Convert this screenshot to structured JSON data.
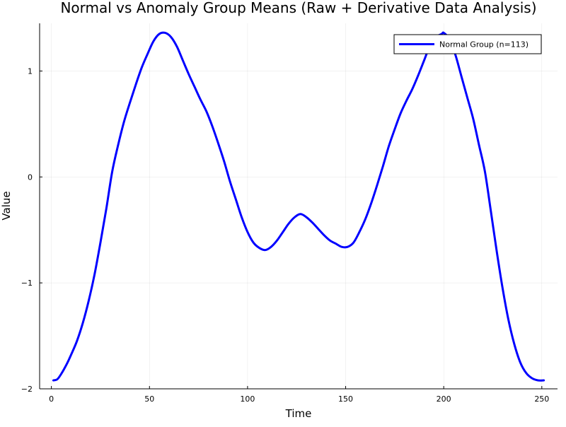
{
  "chart_data": {
    "type": "line",
    "title": "Normal vs Anomaly Group Means (Raw + Derivative Data Analysis)",
    "xlabel": "Time",
    "ylabel": "Value",
    "xlim": [
      -6,
      258
    ],
    "ylim": [
      -2.0,
      1.45
    ],
    "x_ticks": [
      0,
      50,
      100,
      150,
      200,
      250
    ],
    "y_ticks": [
      -2,
      -1,
      0,
      1
    ],
    "x_tick_labels": [
      "0",
      "50",
      "100",
      "150",
      "200",
      "250"
    ],
    "y_tick_labels": [
      "−2",
      "−1",
      "0",
      "1"
    ],
    "grid": true,
    "legend_position": "top-right",
    "series": [
      {
        "name": "Normal Group (n=113)",
        "color": "#0000ff",
        "x": [
          1,
          3,
          5,
          8,
          10,
          13,
          16,
          19,
          22,
          25,
          28,
          31,
          34,
          37,
          40,
          43,
          46,
          49,
          52,
          55,
          58,
          61,
          64,
          67,
          70,
          73,
          76,
          79,
          82,
          85,
          88,
          91,
          94,
          97,
          100,
          103,
          106,
          109,
          112,
          115,
          118,
          121,
          124,
          127,
          130,
          133,
          136,
          139,
          142,
          145,
          148,
          151,
          154,
          157,
          160,
          163,
          166,
          169,
          172,
          175,
          178,
          181,
          184,
          187,
          190,
          193,
          196,
          199,
          200,
          203,
          206,
          209,
          212,
          215,
          218,
          221,
          224,
          227,
          230,
          233,
          236,
          239,
          242,
          245,
          248,
          251
        ],
        "values": [
          -1.92,
          -1.91,
          -1.86,
          -1.76,
          -1.68,
          -1.55,
          -1.38,
          -1.17,
          -0.92,
          -0.62,
          -0.3,
          0.05,
          0.3,
          0.52,
          0.7,
          0.87,
          1.03,
          1.16,
          1.28,
          1.35,
          1.36,
          1.32,
          1.23,
          1.1,
          0.97,
          0.85,
          0.73,
          0.62,
          0.48,
          0.32,
          0.15,
          -0.04,
          -0.21,
          -0.38,
          -0.52,
          -0.62,
          -0.67,
          -0.69,
          -0.66,
          -0.6,
          -0.52,
          -0.44,
          -0.38,
          -0.35,
          -0.38,
          -0.43,
          -0.49,
          -0.55,
          -0.6,
          -0.63,
          -0.66,
          -0.66,
          -0.62,
          -0.52,
          -0.4,
          -0.25,
          -0.08,
          0.1,
          0.29,
          0.45,
          0.6,
          0.72,
          0.83,
          0.96,
          1.1,
          1.24,
          1.32,
          1.35,
          1.36,
          1.3,
          1.15,
          0.95,
          0.75,
          0.55,
          0.3,
          0.05,
          -0.32,
          -0.7,
          -1.05,
          -1.35,
          -1.58,
          -1.75,
          -1.85,
          -1.9,
          -1.92,
          -1.92
        ]
      }
    ]
  }
}
